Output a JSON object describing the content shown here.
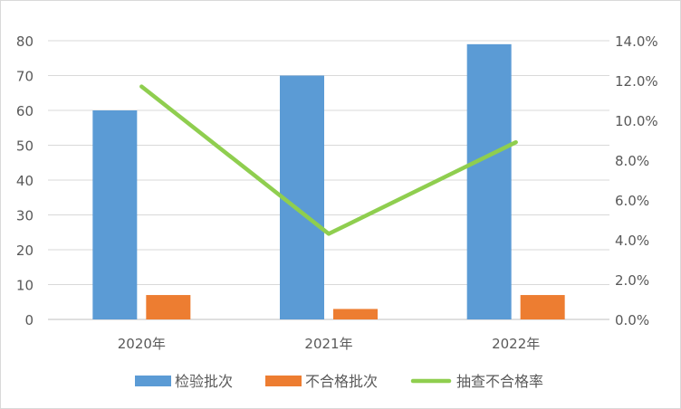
{
  "chart_data": {
    "type": "bar",
    "categories": [
      "2020年",
      "2021年",
      "2022年"
    ],
    "series": [
      {
        "name": "检验批次",
        "type": "bar",
        "axis": "left",
        "values": [
          60,
          70,
          79
        ],
        "color": "#5b9bd5"
      },
      {
        "name": "不合格批次",
        "type": "bar",
        "axis": "left",
        "values": [
          7,
          3,
          7
        ],
        "color": "#ed7d31"
      },
      {
        "name": "抽查不合格率",
        "type": "line",
        "axis": "right",
        "values": [
          11.7,
          4.3,
          8.9
        ],
        "color": "#8fce4f"
      }
    ],
    "y_left": {
      "min": 0,
      "max": 80,
      "step": 10,
      "ticks": [
        "0",
        "10",
        "20",
        "30",
        "40",
        "50",
        "60",
        "70",
        "80"
      ]
    },
    "y_right": {
      "min": 0,
      "max": 14,
      "step": 2,
      "ticks": [
        "0.0%",
        "2.0%",
        "4.0%",
        "6.0%",
        "8.0%",
        "10.0%",
        "12.0%",
        "14.0%"
      ]
    },
    "grid": true,
    "legend_position": "bottom"
  }
}
